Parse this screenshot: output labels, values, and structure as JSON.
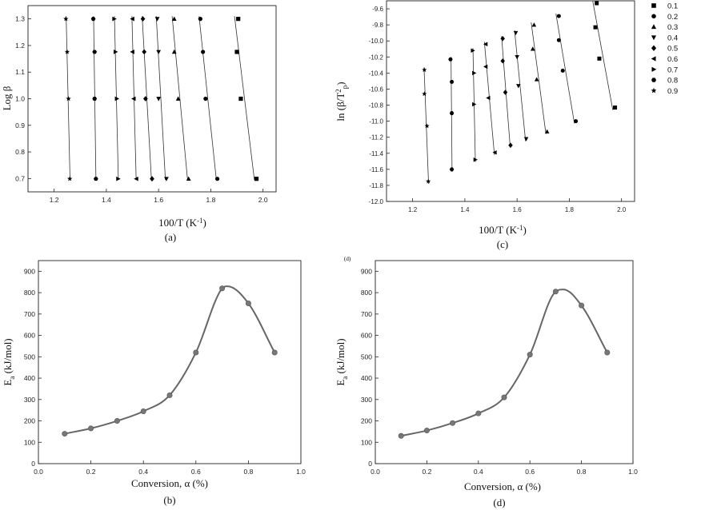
{
  "symbols_legend": [
    {
      "label": "0.1",
      "marker": "square"
    },
    {
      "label": "0.2",
      "marker": "circle"
    },
    {
      "label": "0.3",
      "marker": "triangle-up"
    },
    {
      "label": "0.4",
      "marker": "triangle-down"
    },
    {
      "label": "0.5",
      "marker": "diamond"
    },
    {
      "label": "0.6",
      "marker": "triangle-left"
    },
    {
      "label": "0.7",
      "marker": "triangle-right"
    },
    {
      "label": "0.8",
      "marker": "hexagon"
    },
    {
      "label": "0.9",
      "marker": "star"
    }
  ],
  "chart_data": [
    {
      "id": "a",
      "type": "scatter",
      "panel_label": "(a)",
      "xlabel": "100/T (K",
      "xlabel_sup": "-1",
      "xlabel_end": ")",
      "ylabel": "Log β",
      "xlim": [
        1.1,
        2.05
      ],
      "ylim": [
        0.65,
        1.35
      ],
      "xticks": [
        "1.2",
        "1.4",
        "1.6",
        "1.8",
        "2.0"
      ],
      "yticks": [
        "0.7",
        "0.8",
        "0.9",
        "1.0",
        "1.1",
        "1.2",
        "1.3"
      ],
      "y_levels": [
        1.3,
        1.176,
        1.0,
        0.699
      ],
      "series": [
        {
          "name": "0.1",
          "marker": "square",
          "x": [
            1.905,
            1.9,
            1.915,
            1.975
          ]
        },
        {
          "name": "0.2",
          "marker": "circle",
          "x": [
            1.76,
            1.77,
            1.78,
            1.825
          ]
        },
        {
          "name": "0.3",
          "marker": "triangle-up",
          "x": [
            1.66,
            1.66,
            1.675,
            1.715
          ]
        },
        {
          "name": "0.4",
          "marker": "triangle-down",
          "x": [
            1.595,
            1.6,
            1.6,
            1.63
          ]
        },
        {
          "name": "0.5",
          "marker": "diamond",
          "x": [
            1.54,
            1.545,
            1.55,
            1.575
          ]
        },
        {
          "name": "0.6",
          "marker": "triangle-left",
          "x": [
            1.5,
            1.5,
            1.505,
            1.515
          ]
        },
        {
          "name": "0.7",
          "marker": "triangle-right",
          "x": [
            1.43,
            1.435,
            1.44,
            1.445
          ]
        },
        {
          "name": "0.8",
          "marker": "hexagon",
          "x": [
            1.35,
            1.355,
            1.355,
            1.36
          ]
        },
        {
          "name": "0.9",
          "marker": "star",
          "x": [
            1.245,
            1.25,
            1.255,
            1.26
          ]
        }
      ]
    },
    {
      "id": "c",
      "type": "scatter",
      "panel_label": "(c)",
      "xlabel": "100/T (K",
      "xlabel_sup": "-1",
      "xlabel_end": ")",
      "ylabel": "ln (β/T",
      "ylabel_sup": "2",
      "ylabel_sub": "p",
      "ylabel_end": ")",
      "xlim": [
        1.1,
        2.05
      ],
      "ylim": [
        -12.0,
        -9.5
      ],
      "xticks": [
        "1.2",
        "1.4",
        "1.6",
        "1.8",
        "2.0"
      ],
      "yticks": [
        "-9.6",
        "-9.8",
        "-10.0",
        "-10.2",
        "-10.4",
        "-10.6",
        "-10.8",
        "-11.0",
        "-11.2",
        "-11.4",
        "-11.6",
        "-11.8",
        "-12.0"
      ],
      "series": [
        {
          "name": "0.1",
          "marker": "square",
          "x": [
            1.905,
            1.9,
            1.915,
            1.975
          ],
          "y": [
            -9.53,
            -9.83,
            -10.22,
            -10.83
          ]
        },
        {
          "name": "0.2",
          "marker": "circle",
          "x": [
            1.76,
            1.76,
            1.775,
            1.825
          ],
          "y": [
            -9.69,
            -9.99,
            -10.37,
            -11.0
          ]
        },
        {
          "name": "0.3",
          "marker": "triangle-up",
          "x": [
            1.665,
            1.66,
            1.675,
            1.715
          ],
          "y": [
            -9.8,
            -10.1,
            -10.48,
            -11.13
          ]
        },
        {
          "name": "0.4",
          "marker": "triangle-down",
          "x": [
            1.595,
            1.6,
            1.605,
            1.635
          ],
          "y": [
            -9.9,
            -10.2,
            -10.56,
            -11.22
          ]
        },
        {
          "name": "0.5",
          "marker": "diamond",
          "x": [
            1.545,
            1.545,
            1.555,
            1.575
          ],
          "y": [
            -9.97,
            -10.25,
            -10.64,
            -11.3
          ]
        },
        {
          "name": "0.6",
          "marker": "triangle-left",
          "x": [
            1.48,
            1.48,
            1.49,
            1.515
          ],
          "y": [
            -10.04,
            -10.32,
            -10.71,
            -11.39
          ]
        },
        {
          "name": "0.7",
          "marker": "triangle-right",
          "x": [
            1.43,
            1.435,
            1.435,
            1.44
          ],
          "y": [
            -10.12,
            -10.4,
            -10.79,
            -11.48
          ]
        },
        {
          "name": "0.8",
          "marker": "hexagon",
          "x": [
            1.345,
            1.35,
            1.35,
            1.35
          ],
          "y": [
            -10.23,
            -10.51,
            -10.9,
            -11.6
          ]
        },
        {
          "name": "0.9",
          "marker": "star",
          "x": [
            1.245,
            1.245,
            1.255,
            1.26
          ],
          "y": [
            -10.36,
            -10.66,
            -11.06,
            -11.75
          ]
        }
      ]
    },
    {
      "id": "b",
      "type": "line",
      "panel_label": "(b)",
      "xlabel": "Conversion, α (%)",
      "ylabel": "E",
      "ylabel_sub": "a",
      "ylabel_end": " (kJ/mol)",
      "xlim": [
        0.0,
        1.0
      ],
      "ylim": [
        0,
        950
      ],
      "xticks": [
        "0.0",
        "0.2",
        "0.4",
        "0.6",
        "0.8",
        "1.0"
      ],
      "yticks": [
        "0",
        "100",
        "200",
        "300",
        "400",
        "500",
        "600",
        "700",
        "800",
        "900"
      ],
      "x": [
        0.1,
        0.2,
        0.3,
        0.4,
        0.5,
        0.6,
        0.7,
        0.8,
        0.9
      ],
      "values": [
        140,
        165,
        200,
        245,
        320,
        520,
        820,
        750,
        520
      ],
      "peak": [
        0.72,
        830
      ]
    },
    {
      "id": "d",
      "type": "line",
      "panel_label": "(d)",
      "corner_label": "(d)",
      "xlabel": "Conversion, α (%)",
      "ylabel": "E",
      "ylabel_sub": "a",
      "ylabel_end": " (kJ/mol)",
      "xlim": [
        0.0,
        1.0
      ],
      "ylim": [
        0,
        950
      ],
      "xticks": [
        "0.0",
        "0.2",
        "0.4",
        "0.6",
        "0.8",
        "1.0"
      ],
      "yticks": [
        "0",
        "100",
        "200",
        "300",
        "400",
        "500",
        "600",
        "700",
        "800",
        "900"
      ],
      "x": [
        0.1,
        0.2,
        0.3,
        0.4,
        0.5,
        0.6,
        0.7,
        0.8,
        0.9
      ],
      "values": [
        130,
        155,
        190,
        235,
        310,
        510,
        805,
        740,
        520
      ],
      "peak": [
        0.73,
        815
      ]
    }
  ]
}
